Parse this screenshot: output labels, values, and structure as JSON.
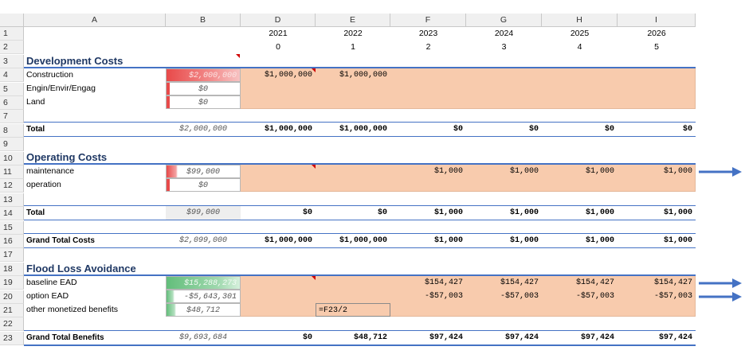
{
  "columns": [
    "A",
    "B",
    "D",
    "E",
    "F",
    "G",
    "H",
    "I"
  ],
  "rows": [
    "1",
    "2",
    "3",
    "4",
    "5",
    "6",
    "7",
    "8",
    "9",
    "10",
    "11",
    "12",
    "13",
    "14",
    "15",
    "16",
    "17",
    "18",
    "19",
    "20",
    "21",
    "22",
    "23"
  ],
  "years": [
    "2021",
    "2022",
    "2023",
    "2024",
    "2025",
    "2026"
  ],
  "year_index": [
    "0",
    "1",
    "2",
    "3",
    "4",
    "5"
  ],
  "dev": {
    "title": "Development Costs",
    "construction": {
      "label": "Construction",
      "b": "$2,000,000",
      "d": "$1,000,000",
      "e": "$1,000,000"
    },
    "engin": {
      "label": "Engin/Envir/Engag",
      "b": "$0"
    },
    "land": {
      "label": "Land",
      "b": "$0"
    },
    "total": {
      "label": "Total",
      "b": "$2,000,000",
      "vals": [
        "$1,000,000",
        "$1,000,000",
        "$0",
        "$0",
        "$0",
        "$0"
      ]
    }
  },
  "op": {
    "title": "Operating Costs",
    "maintenance": {
      "label": "maintenance",
      "b": "$99,000",
      "vals": [
        "$1,000",
        "$1,000",
        "$1,000",
        "$1,000"
      ]
    },
    "operation": {
      "label": "operation",
      "b": "$0"
    },
    "total": {
      "label": "Total",
      "b": "$99,000",
      "vals": [
        "$0",
        "$0",
        "$1,000",
        "$1,000",
        "$1,000",
        "$1,000"
      ]
    }
  },
  "grand_costs": {
    "label": "Grand Total Costs",
    "b": "$2,099,000",
    "vals": [
      "$1,000,000",
      "$1,000,000",
      "$1,000",
      "$1,000",
      "$1,000",
      "$1,000"
    ]
  },
  "flood": {
    "title": "Flood Loss Avoidance",
    "baseline": {
      "label": "baseline EAD",
      "b": "$15,288,273",
      "vals": [
        "$154,427",
        "$154,427",
        "$154,427",
        "$154,427"
      ]
    },
    "option": {
      "label": "option EAD",
      "b": "-$5,643,301",
      "vals": [
        "-$57,003",
        "-$57,003",
        "-$57,003",
        "-$57,003"
      ]
    },
    "other": {
      "label": "other monetized benefits",
      "b": "$48,712",
      "e": "=F23/2"
    }
  },
  "grand_benefits": {
    "label": "Grand Total Benefits",
    "b": "$9,693,684",
    "vals": [
      "$0",
      "$48,712",
      "$97,424",
      "$97,424",
      "$97,424",
      "$97,424"
    ]
  },
  "colors": {
    "orange": "#f8cbad",
    "accent": "#4472c4",
    "red_bar": "#e84a4a",
    "green_bar": "#63be7b"
  }
}
